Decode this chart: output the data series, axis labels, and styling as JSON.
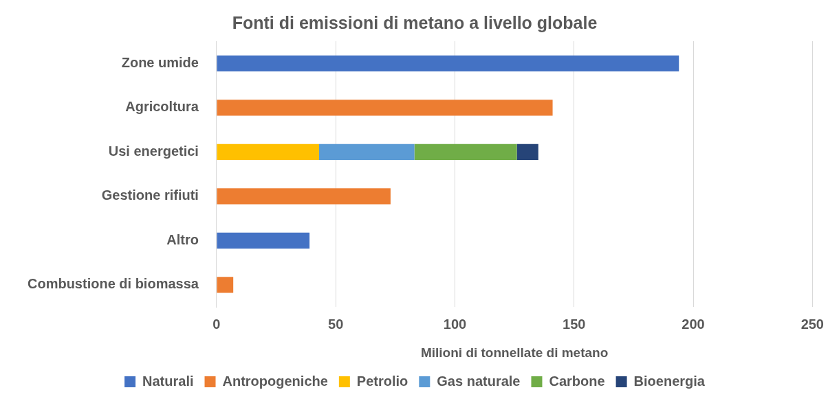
{
  "chart_data": {
    "type": "bar",
    "orientation": "horizontal",
    "stacked": true,
    "title": "Fonti di emissioni di metano a livello globale",
    "xlabel": "Milioni di tonnellate di metano",
    "categories": [
      "Zone umide",
      "Agricoltura",
      "Usi energetici",
      "Gestione rifiuti",
      "Altro",
      "Combustione di biomassa"
    ],
    "series": [
      {
        "name": "Naturali",
        "color": "#4472c4",
        "values": [
          194,
          null,
          null,
          null,
          39,
          null
        ]
      },
      {
        "name": "Antropogeniche",
        "color": "#ed7d31",
        "values": [
          null,
          141,
          null,
          73,
          null,
          7
        ]
      },
      {
        "name": "Petrolio",
        "color": "#ffc000",
        "values": [
          null,
          null,
          43,
          null,
          null,
          null
        ]
      },
      {
        "name": "Gas naturale",
        "color": "#5b9bd5",
        "values": [
          null,
          null,
          40,
          null,
          null,
          null
        ]
      },
      {
        "name": "Carbone",
        "color": "#70ad47",
        "values": [
          null,
          null,
          43,
          null,
          null,
          null
        ]
      },
      {
        "name": "Bioenergia",
        "color": "#264478",
        "values": [
          null,
          null,
          9,
          null,
          null,
          null
        ]
      }
    ],
    "xlim": [
      0,
      250
    ],
    "xticks": [
      0,
      50,
      100,
      150,
      200,
      250
    ],
    "grid": "x",
    "legend": "bottom"
  }
}
